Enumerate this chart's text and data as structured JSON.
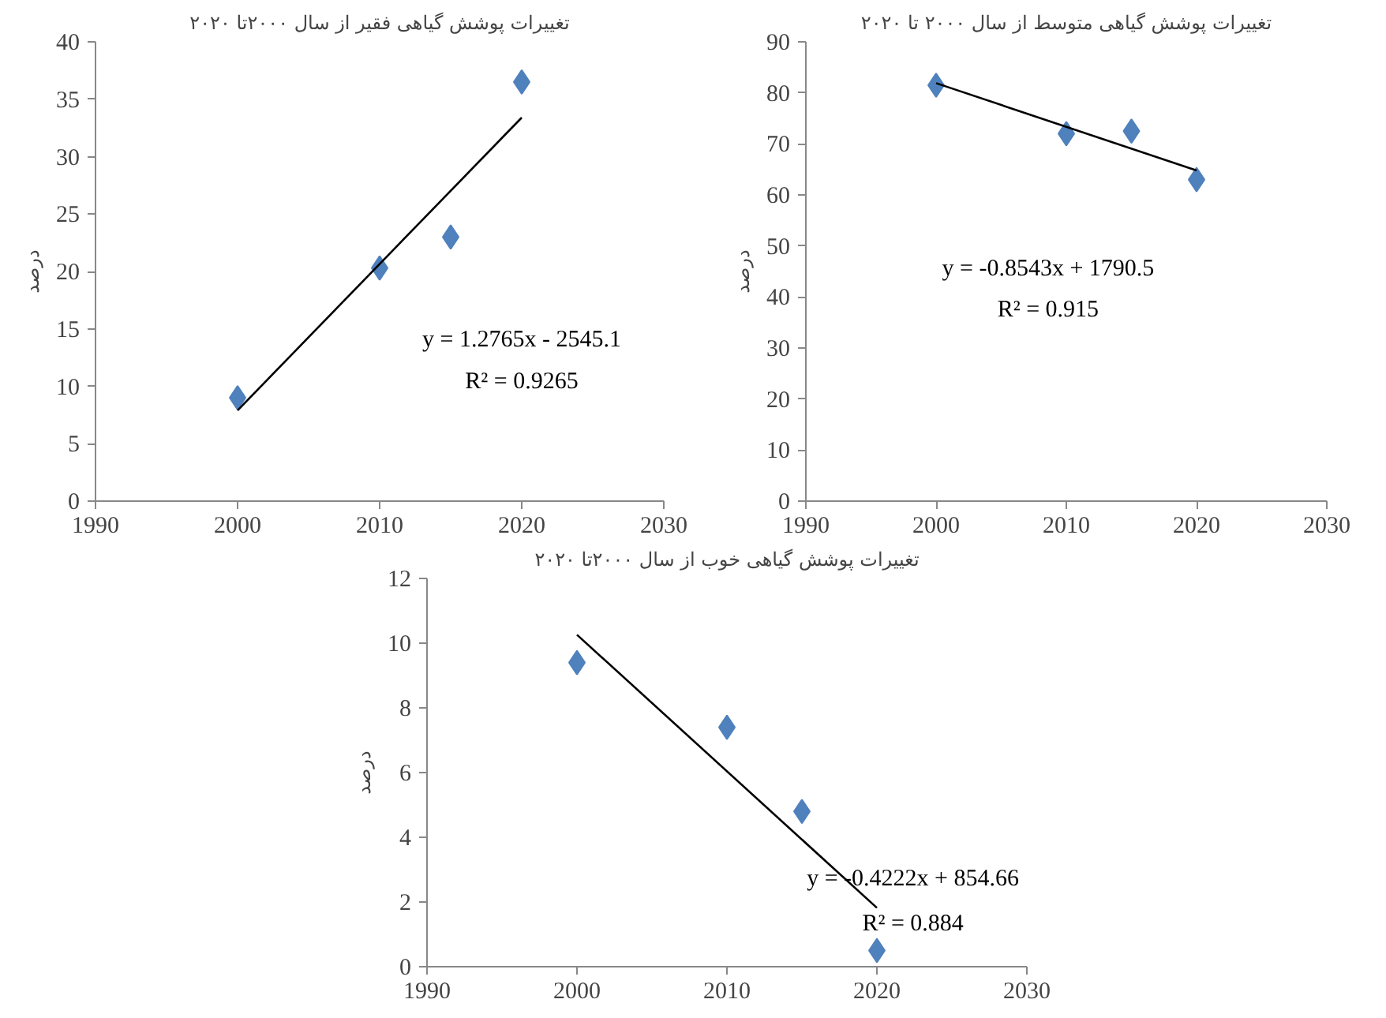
{
  "chart_data": [
    {
      "type": "scatter",
      "title": "تغییرات پوشش گیاهی فقیر از سال ۲۰۰۰تا ۲۰۲۰",
      "ylabel": "درصد",
      "xlim": [
        1990,
        2030
      ],
      "xticks": [
        1990,
        2000,
        2010,
        2020,
        2030
      ],
      "ylim": [
        0,
        40
      ],
      "yticks": [
        0,
        5,
        10,
        15,
        20,
        25,
        30,
        35,
        40
      ],
      "grid": false,
      "series": [
        {
          "marker": "diamond",
          "color": "#4f81bd",
          "x": [
            2000,
            2010,
            2015,
            2020
          ],
          "values": [
            9,
            20.3,
            23,
            36.5
          ]
        },
        {
          "type": "line",
          "line_style": "solid",
          "color": "#000000",
          "x": [
            2000,
            2020
          ],
          "values": [
            7.9,
            33.4
          ]
        }
      ],
      "annotations": [
        "y = 1.2765x - 2545.1",
        "R² = 0.9265"
      ]
    },
    {
      "type": "scatter",
      "title": "تغییرات پوشش گیاهی متوسط از سال ۲۰۰۰ تا ۲۰۲۰",
      "ylabel": "درصد",
      "xlim": [
        1990,
        2030
      ],
      "xticks": [
        1990,
        2000,
        2010,
        2020,
        2030
      ],
      "ylim": [
        0,
        90
      ],
      "yticks": [
        0,
        10,
        20,
        30,
        40,
        50,
        60,
        70,
        80,
        90
      ],
      "grid": false,
      "series": [
        {
          "marker": "diamond",
          "color": "#4f81bd",
          "x": [
            2000,
            2010,
            2015,
            2020
          ],
          "values": [
            81.5,
            72,
            72.5,
            63
          ]
        },
        {
          "type": "line",
          "line_style": "solid",
          "color": "#000000",
          "x": [
            2000,
            2020
          ],
          "values": [
            81.9,
            64.8
          ]
        }
      ],
      "annotations": [
        "y = -0.8543x + 1790.5",
        "R² = 0.915"
      ]
    },
    {
      "type": "scatter",
      "title": "تغییرات پوشش گیاهی خوب از سال ۲۰۰۰تا ۲۰۲۰",
      "ylabel": "درصد",
      "xlim": [
        1990,
        2030
      ],
      "xticks": [
        1990,
        2000,
        2010,
        2020,
        2030
      ],
      "ylim": [
        0,
        12
      ],
      "yticks": [
        0,
        2,
        4,
        6,
        8,
        10,
        12
      ],
      "grid": false,
      "series": [
        {
          "marker": "diamond",
          "color": "#4f81bd",
          "x": [
            2000,
            2010,
            2015,
            2020
          ],
          "values": [
            9.4,
            7.4,
            4.8,
            0.5
          ]
        },
        {
          "type": "line",
          "line_style": "solid",
          "color": "#000000",
          "x": [
            2000,
            2020
          ],
          "values": [
            10.26,
            1.82
          ]
        }
      ],
      "annotations": [
        "y = -0.4222x + 854.66",
        "R² = 0.884"
      ]
    }
  ]
}
